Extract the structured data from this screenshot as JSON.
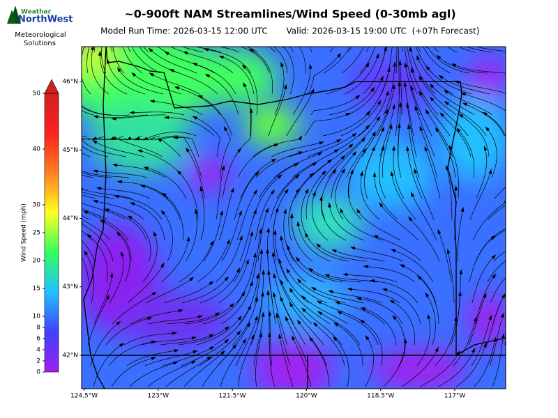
{
  "logo": {
    "line1": "Weather",
    "line2": "NorthWest",
    "line3": "Meteorological",
    "line4": "Solutions"
  },
  "chart_data": {
    "type": "map",
    "title": "~0-900ft NAM Streamlines/Wind Speed (0-30mb agl)",
    "subtitle_left": "Model Run Time: 2026-03-15 12:00 UTC",
    "subtitle_right": "Valid: 2026-03-15 19:00 UTC  (+07h Forecast)",
    "xlim": [
      -124.55,
      -115.97
    ],
    "ylim": [
      41.51,
      46.51
    ],
    "xticks": [
      {
        "value": -124.5,
        "label": "124.5°W"
      },
      {
        "value": -123,
        "label": "123°W"
      },
      {
        "value": -121.5,
        "label": "121.5°W"
      },
      {
        "value": -120,
        "label": "120°W"
      },
      {
        "value": -118.5,
        "label": "118.5°W"
      },
      {
        "value": -117,
        "label": "117°W"
      }
    ],
    "yticks": [
      {
        "value": 42,
        "label": "42°N"
      },
      {
        "value": 43,
        "label": "43°N"
      },
      {
        "value": 44,
        "label": "44°N"
      },
      {
        "value": 45,
        "label": "45°N"
      },
      {
        "value": 46,
        "label": "46°N"
      }
    ],
    "colorbar": {
      "label": "Wind Speed (mph)",
      "lim": [
        0,
        50
      ],
      "ticks": [
        0,
        2,
        4,
        6,
        8,
        10,
        15,
        20,
        25,
        30,
        40,
        50
      ],
      "colors": [
        "#a020f0",
        "#4040ff",
        "#20c0ff",
        "#30ff60",
        "#ffff20",
        "#ff8020",
        "#ff2020",
        "#d02020"
      ]
    }
  }
}
